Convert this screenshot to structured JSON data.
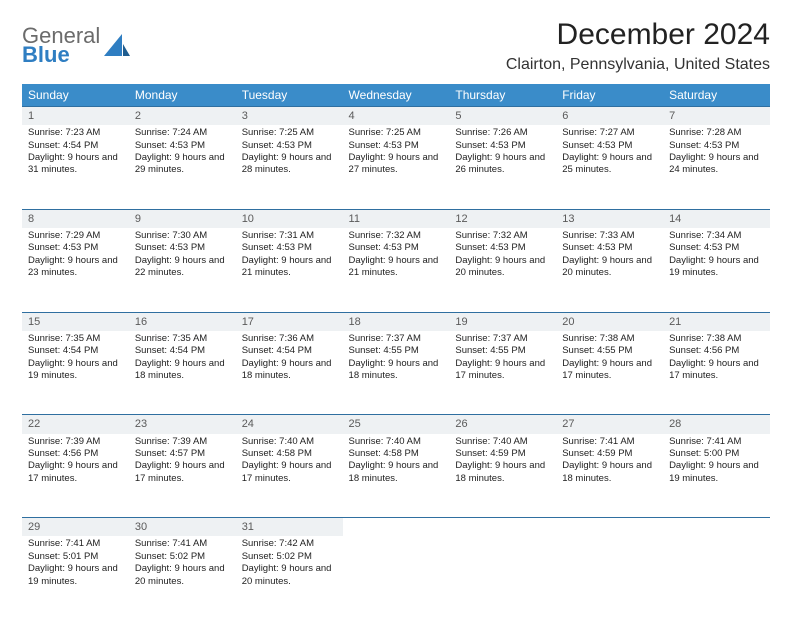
{
  "brand": {
    "line1": "General",
    "line2": "Blue"
  },
  "title": "December 2024",
  "location": "Clairton, Pennsylvania, United States",
  "colors": {
    "header_bg": "#3a8cc9",
    "daynum_bg": "#eef1f3",
    "row_border": "#2f6fa0",
    "text": "#222222",
    "logo_gray": "#6b6b6b",
    "logo_blue": "#2f7ec2"
  },
  "day_headers": [
    "Sunday",
    "Monday",
    "Tuesday",
    "Wednesday",
    "Thursday",
    "Friday",
    "Saturday"
  ],
  "weeks": [
    [
      {
        "n": "1",
        "sr": "7:23 AM",
        "ss": "4:54 PM",
        "dl": "9 hours and 31 minutes."
      },
      {
        "n": "2",
        "sr": "7:24 AM",
        "ss": "4:53 PM",
        "dl": "9 hours and 29 minutes."
      },
      {
        "n": "3",
        "sr": "7:25 AM",
        "ss": "4:53 PM",
        "dl": "9 hours and 28 minutes."
      },
      {
        "n": "4",
        "sr": "7:25 AM",
        "ss": "4:53 PM",
        "dl": "9 hours and 27 minutes."
      },
      {
        "n": "5",
        "sr": "7:26 AM",
        "ss": "4:53 PM",
        "dl": "9 hours and 26 minutes."
      },
      {
        "n": "6",
        "sr": "7:27 AM",
        "ss": "4:53 PM",
        "dl": "9 hours and 25 minutes."
      },
      {
        "n": "7",
        "sr": "7:28 AM",
        "ss": "4:53 PM",
        "dl": "9 hours and 24 minutes."
      }
    ],
    [
      {
        "n": "8",
        "sr": "7:29 AM",
        "ss": "4:53 PM",
        "dl": "9 hours and 23 minutes."
      },
      {
        "n": "9",
        "sr": "7:30 AM",
        "ss": "4:53 PM",
        "dl": "9 hours and 22 minutes."
      },
      {
        "n": "10",
        "sr": "7:31 AM",
        "ss": "4:53 PM",
        "dl": "9 hours and 21 minutes."
      },
      {
        "n": "11",
        "sr": "7:32 AM",
        "ss": "4:53 PM",
        "dl": "9 hours and 21 minutes."
      },
      {
        "n": "12",
        "sr": "7:32 AM",
        "ss": "4:53 PM",
        "dl": "9 hours and 20 minutes."
      },
      {
        "n": "13",
        "sr": "7:33 AM",
        "ss": "4:53 PM",
        "dl": "9 hours and 20 minutes."
      },
      {
        "n": "14",
        "sr": "7:34 AM",
        "ss": "4:53 PM",
        "dl": "9 hours and 19 minutes."
      }
    ],
    [
      {
        "n": "15",
        "sr": "7:35 AM",
        "ss": "4:54 PM",
        "dl": "9 hours and 19 minutes."
      },
      {
        "n": "16",
        "sr": "7:35 AM",
        "ss": "4:54 PM",
        "dl": "9 hours and 18 minutes."
      },
      {
        "n": "17",
        "sr": "7:36 AM",
        "ss": "4:54 PM",
        "dl": "9 hours and 18 minutes."
      },
      {
        "n": "18",
        "sr": "7:37 AM",
        "ss": "4:55 PM",
        "dl": "9 hours and 18 minutes."
      },
      {
        "n": "19",
        "sr": "7:37 AM",
        "ss": "4:55 PM",
        "dl": "9 hours and 17 minutes."
      },
      {
        "n": "20",
        "sr": "7:38 AM",
        "ss": "4:55 PM",
        "dl": "9 hours and 17 minutes."
      },
      {
        "n": "21",
        "sr": "7:38 AM",
        "ss": "4:56 PM",
        "dl": "9 hours and 17 minutes."
      }
    ],
    [
      {
        "n": "22",
        "sr": "7:39 AM",
        "ss": "4:56 PM",
        "dl": "9 hours and 17 minutes."
      },
      {
        "n": "23",
        "sr": "7:39 AM",
        "ss": "4:57 PM",
        "dl": "9 hours and 17 minutes."
      },
      {
        "n": "24",
        "sr": "7:40 AM",
        "ss": "4:58 PM",
        "dl": "9 hours and 17 minutes."
      },
      {
        "n": "25",
        "sr": "7:40 AM",
        "ss": "4:58 PM",
        "dl": "9 hours and 18 minutes."
      },
      {
        "n": "26",
        "sr": "7:40 AM",
        "ss": "4:59 PM",
        "dl": "9 hours and 18 minutes."
      },
      {
        "n": "27",
        "sr": "7:41 AM",
        "ss": "4:59 PM",
        "dl": "9 hours and 18 minutes."
      },
      {
        "n": "28",
        "sr": "7:41 AM",
        "ss": "5:00 PM",
        "dl": "9 hours and 19 minutes."
      }
    ],
    [
      {
        "n": "29",
        "sr": "7:41 AM",
        "ss": "5:01 PM",
        "dl": "9 hours and 19 minutes."
      },
      {
        "n": "30",
        "sr": "7:41 AM",
        "ss": "5:02 PM",
        "dl": "9 hours and 20 minutes."
      },
      {
        "n": "31",
        "sr": "7:42 AM",
        "ss": "5:02 PM",
        "dl": "9 hours and 20 minutes."
      },
      null,
      null,
      null,
      null
    ]
  ],
  "labels": {
    "sunrise": "Sunrise:",
    "sunset": "Sunset:",
    "daylight": "Daylight:"
  }
}
